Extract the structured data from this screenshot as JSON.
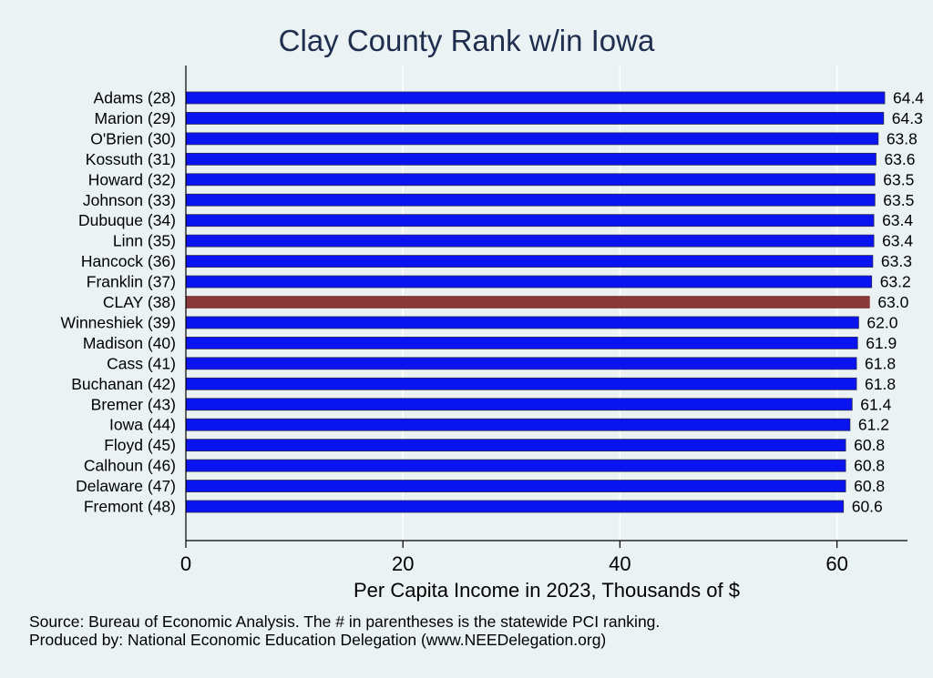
{
  "chart_data": {
    "type": "bar",
    "orientation": "horizontal",
    "title": "Clay County Rank w/in Iowa",
    "xlabel": "Per Capita Income in 2023, Thousands of $",
    "ylabel": "",
    "xlim": [
      0,
      66.5
    ],
    "xticks": [
      0,
      20,
      40,
      60
    ],
    "grid": true,
    "categories": [
      "Adams (28)",
      "Marion (29)",
      "O'Brien (30)",
      "Kossuth (31)",
      "Howard (32)",
      "Johnson (33)",
      "Dubuque (34)",
      "Linn (35)",
      "Hancock (36)",
      "Franklin (37)",
      "CLAY (38)",
      "Winneshiek (39)",
      "Madison (40)",
      "Cass (41)",
      "Buchanan (42)",
      "Bremer (43)",
      "Iowa (44)",
      "Floyd (45)",
      "Calhoun (46)",
      "Delaware (47)",
      "Fremont (48)"
    ],
    "values": [
      64.4,
      64.3,
      63.8,
      63.6,
      63.5,
      63.5,
      63.4,
      63.4,
      63.3,
      63.2,
      63.0,
      62.0,
      61.9,
      61.8,
      61.8,
      61.4,
      61.2,
      60.8,
      60.8,
      60.8,
      60.6
    ],
    "value_labels": [
      "64.4",
      "64.3",
      "63.8",
      "63.6",
      "63.5",
      "63.5",
      "63.4",
      "63.4",
      "63.3",
      "63.2",
      "63.0",
      "62.0",
      "61.9",
      "61.8",
      "61.8",
      "61.4",
      "61.2",
      "60.8",
      "60.8",
      "60.8",
      "60.6"
    ],
    "highlight_index": 10,
    "colors": {
      "bar": "#0a14f0",
      "highlight": "#8b3a3a",
      "bar_edge": "#2a2a5a",
      "grid": "#ffffff"
    }
  },
  "footer": {
    "source": "Source: Bureau of Economic Analysis. The # in parentheses is the statewide PCI ranking.",
    "produced_by": "Produced by: National Economic Education Delegation (www.NEEDelegation.org)"
  }
}
